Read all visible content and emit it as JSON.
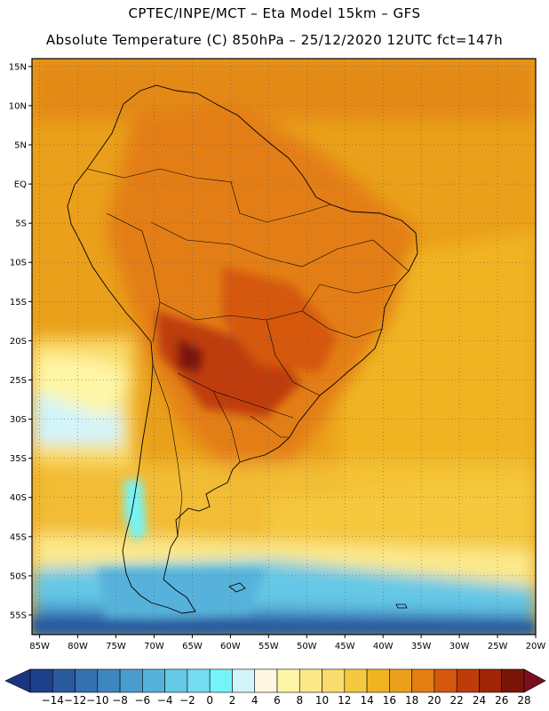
{
  "header": {
    "line1": "CPTEC/INPE/MCT –  Eta Model 15km – GFS",
    "line2": "Absolute Temperature (C) 850hPa – 25/12/2020 12UTC fct=147h"
  },
  "map": {
    "lat_labels": [
      "15N",
      "10N",
      "5N",
      "EQ",
      "5S",
      "10S",
      "15S",
      "20S",
      "25S",
      "30S",
      "35S",
      "40S",
      "45S",
      "50S",
      "55S"
    ],
    "lon_labels": [
      "85W",
      "80W",
      "75W",
      "70W",
      "65W",
      "60W",
      "55W",
      "50W",
      "45W",
      "40W",
      "35W",
      "30W",
      "25W",
      "20W"
    ],
    "lat_range": [
      16,
      -57.5
    ],
    "lon_range": [
      -86,
      -20
    ],
    "grid": "dotted"
  },
  "colorbar": {
    "labels": [
      "-14",
      "-12",
      "-10",
      "-8",
      "-6",
      "-4",
      "-2",
      "0",
      "2",
      "4",
      "6",
      "8",
      "10",
      "12",
      "14",
      "16",
      "18",
      "20",
      "22",
      "24",
      "26",
      "28"
    ],
    "colors": [
      "#1e3f8a",
      "#2a5a9e",
      "#3570b0",
      "#3e86c0",
      "#4a9ccd",
      "#57b2da",
      "#65c8e6",
      "#75dcf0",
      "#74f4f8",
      "#d2f4fb",
      "#fef8e2",
      "#fef6a6",
      "#fce98a",
      "#fadc6c",
      "#f5c83f",
      "#f0b422",
      "#eaa01a",
      "#e37e12",
      "#d5580e",
      "#bf3c0a",
      "#a02408",
      "#7a1608"
    ],
    "under_color": "#1b3580",
    "over_color": "#7a0f22"
  }
}
